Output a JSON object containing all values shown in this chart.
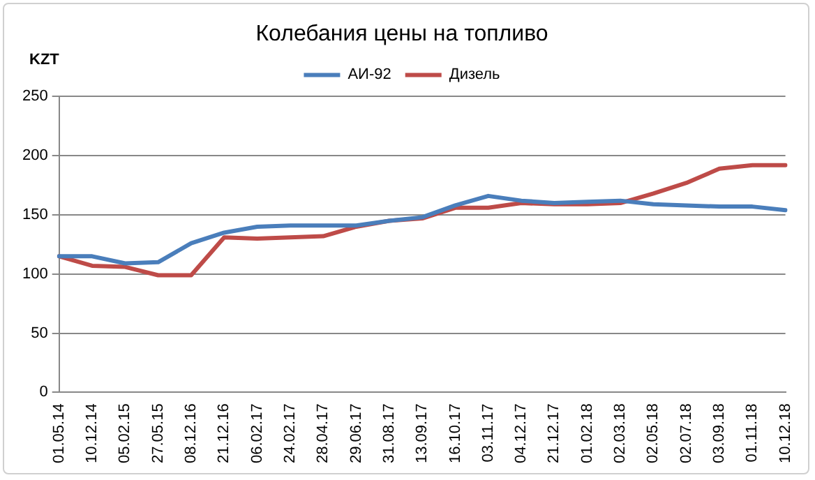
{
  "chart_data": {
    "type": "line",
    "title": "Колебания цены на топливо",
    "ylabel": "KZT",
    "categories": [
      "01.05.14",
      "10.12.14",
      "05.02.15",
      "27.05.15",
      "08.12.16",
      "21.12.16",
      "06.02.17",
      "24.02.17",
      "28.04.17",
      "29.06.17",
      "31.08.17",
      "13.09.17",
      "16.10.17",
      "03.11.17",
      "04.12.17",
      "21.12.17",
      "01.02.18",
      "02.03.18",
      "02.05.18",
      "02.07.18",
      "03.09.18",
      "01.11.18",
      "10.12.18"
    ],
    "series": [
      {
        "name": "АИ-92",
        "color": "#4a7ebb",
        "values": [
          115,
          115,
          109,
          110,
          126,
          135,
          140,
          141,
          141,
          141,
          145,
          148,
          158,
          166,
          162,
          160,
          161,
          162,
          159,
          158,
          157,
          157,
          154
        ]
      },
      {
        "name": "Дизель",
        "color": "#be4b48",
        "values": [
          115,
          107,
          106,
          99,
          99,
          131,
          130,
          131,
          132,
          140,
          145,
          147,
          156,
          156,
          160,
          159,
          159,
          160,
          168,
          177,
          189,
          192,
          192
        ]
      }
    ],
    "ylim": [
      0,
      250
    ],
    "yticks": [
      0,
      50,
      100,
      150,
      200,
      250
    ],
    "grid": "y",
    "legend": "top",
    "marker": "none",
    "line_style": "solid"
  }
}
